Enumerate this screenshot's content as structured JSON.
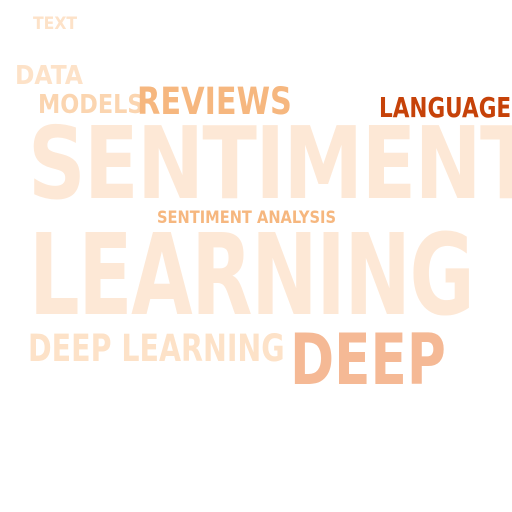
{
  "word_cloud": {
    "words": [
      {
        "key": "text",
        "text": "TEXT",
        "color": "#fde2c8"
      },
      {
        "key": "data",
        "text": "DATA",
        "color": "#fde2c8"
      },
      {
        "key": "models",
        "text": "MODELS",
        "color": "#fbd5b0"
      },
      {
        "key": "reviews",
        "text": "REVIEWS",
        "color": "#f6b77f"
      },
      {
        "key": "language",
        "text": "LANGUAGE",
        "color": "#c64209"
      },
      {
        "key": "sentiment",
        "text": "SENTIMENT",
        "color": "#fde8d6"
      },
      {
        "key": "sentiment_analysis",
        "text": "SENTIMENT ANALYSIS",
        "color": "#f6b77f"
      },
      {
        "key": "learning",
        "text": "LEARNING",
        "color": "#fde8d6"
      },
      {
        "key": "deep_learning",
        "text": "DEEP LEARNING",
        "color": "#fde2c8"
      },
      {
        "key": "deep",
        "text": "DEEP",
        "color": "#f5b995"
      }
    ]
  }
}
